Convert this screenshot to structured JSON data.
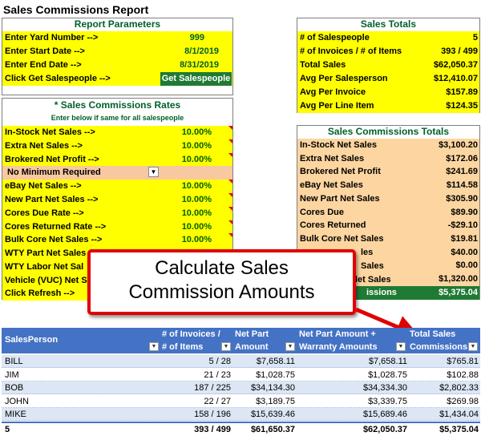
{
  "title": "Sales Commissions Report",
  "report_params": {
    "header": "Report Parameters",
    "rows": [
      {
        "label": "Enter Yard Number -->",
        "value": "999"
      },
      {
        "label": "Enter Start Date -->",
        "value": "8/1/2019"
      },
      {
        "label": "Enter End Date -->",
        "value": "8/31/2019"
      }
    ],
    "get_label": "Click Get Salespeople -->",
    "get_button": "Get Salespeople"
  },
  "rates": {
    "header": "* Sales Commissions Rates",
    "subheader": "Enter below if same for all salespeople",
    "rows": [
      {
        "label": "In-Stock Net Sales -->",
        "value": "10.00%"
      },
      {
        "label": "Extra Net Sales -->",
        "value": "10.00%"
      },
      {
        "label": "Brokered Net Profit -->",
        "value": "10.00%"
      }
    ],
    "dropdown_value": "No Minimum Required",
    "rows2": [
      {
        "label": "eBay Net Sales -->",
        "value": "10.00%"
      },
      {
        "label": "New Part Net Sales -->",
        "value": "10.00%"
      },
      {
        "label": "Cores Due Rate -->",
        "value": "10.00%"
      },
      {
        "label": "Cores Returned Rate -->",
        "value": "10.00%"
      },
      {
        "label": "Bulk Core Net Sales -->",
        "value": "10.00%"
      },
      {
        "label": "WTY Part Net Sales",
        "value": ""
      },
      {
        "label": "WTY Labor Net Sal",
        "value": ""
      },
      {
        "label": "Vehicle (VUC) Net S",
        "value": ""
      }
    ],
    "refresh_label": "Click Refresh -->"
  },
  "sales_totals": {
    "header": "Sales Totals",
    "rows": [
      {
        "label": "# of Salespeople",
        "value": "5"
      },
      {
        "label": "# of Invoices / # of Items",
        "value": "393 / 499"
      },
      {
        "label": "Total Sales",
        "value": "$62,050.37"
      },
      {
        "label": "Avg Per Salesperson",
        "value": "$12,410.07"
      },
      {
        "label": "Avg Per Invoice",
        "value": "$157.89"
      },
      {
        "label": "Avg Per Line Item",
        "value": "$124.35"
      }
    ]
  },
  "commission_totals": {
    "header": "Sales Commissions Totals",
    "rows": [
      {
        "label": "In-Stock Net Sales",
        "value": "$3,100.20"
      },
      {
        "label": "Extra Net Sales",
        "value": "$172.06"
      },
      {
        "label": "Brokered Net Profit",
        "value": "$241.69"
      },
      {
        "label": "eBay Net Sales",
        "value": "$114.58"
      },
      {
        "label": "New Part Net Sales",
        "value": "$305.90"
      },
      {
        "label": "Cores Due",
        "value": "$89.90"
      },
      {
        "label": "Cores Returned",
        "value": "-$29.10"
      },
      {
        "label": "Bulk Core Net Sales",
        "value": "$19.81"
      },
      {
        "label": "",
        "value": "$40.00"
      },
      {
        "label": "",
        "value": "$0.00"
      },
      {
        "label": "",
        "value": "$1,320.00"
      }
    ],
    "total_label": "issions",
    "total_value": "$5,375.04",
    "partial_labels": [
      "les",
      "Sales",
      "let Sales"
    ]
  },
  "callout": {
    "line1": "Calculate Sales",
    "line2": "Commission Amounts"
  },
  "table": {
    "headers": {
      "salesperson": "SalesPerson",
      "invoices_1": "# of Invoices /",
      "invoices_2": "# of Items",
      "netpart_1": "Net Part",
      "netpart_2": "Amount",
      "netwarr_1": "Net Part Amount +",
      "netwarr_2": "Warranty Amounts",
      "total_1": "Total Sales",
      "total_2": "Commissions"
    },
    "rows": [
      {
        "name": "BILL",
        "inv": "5 / 28",
        "net": "$7,658.11",
        "netw": "$7,658.11",
        "comm": "$765.81"
      },
      {
        "name": "JIM",
        "inv": "21 / 23",
        "net": "$1,028.75",
        "netw": "$1,028.75",
        "comm": "$102.88"
      },
      {
        "name": "BOB",
        "inv": "187 / 225",
        "net": "$34,134.30",
        "netw": "$34,334.30",
        "comm": "$2,802.33"
      },
      {
        "name": "JOHN",
        "inv": "22 / 27",
        "net": "$3,189.75",
        "netw": "$3,339.75",
        "comm": "$269.98"
      },
      {
        "name": "MIKE",
        "inv": "158 / 196",
        "net": "$15,639.46",
        "netw": "$15,689.46",
        "comm": "$1,434.04"
      }
    ],
    "total": {
      "name": "5",
      "inv": "393 / 499",
      "net": "$61,650.37",
      "netw": "$62,050.37",
      "comm": "$5,375.04"
    }
  },
  "colors": {
    "accent_green": "#00602b",
    "yellow": "#ffff00",
    "tan": "#fcd5a0",
    "table_header": "#4472c4",
    "callout_border": "#e00000",
    "button_green": "#1f7a34"
  }
}
